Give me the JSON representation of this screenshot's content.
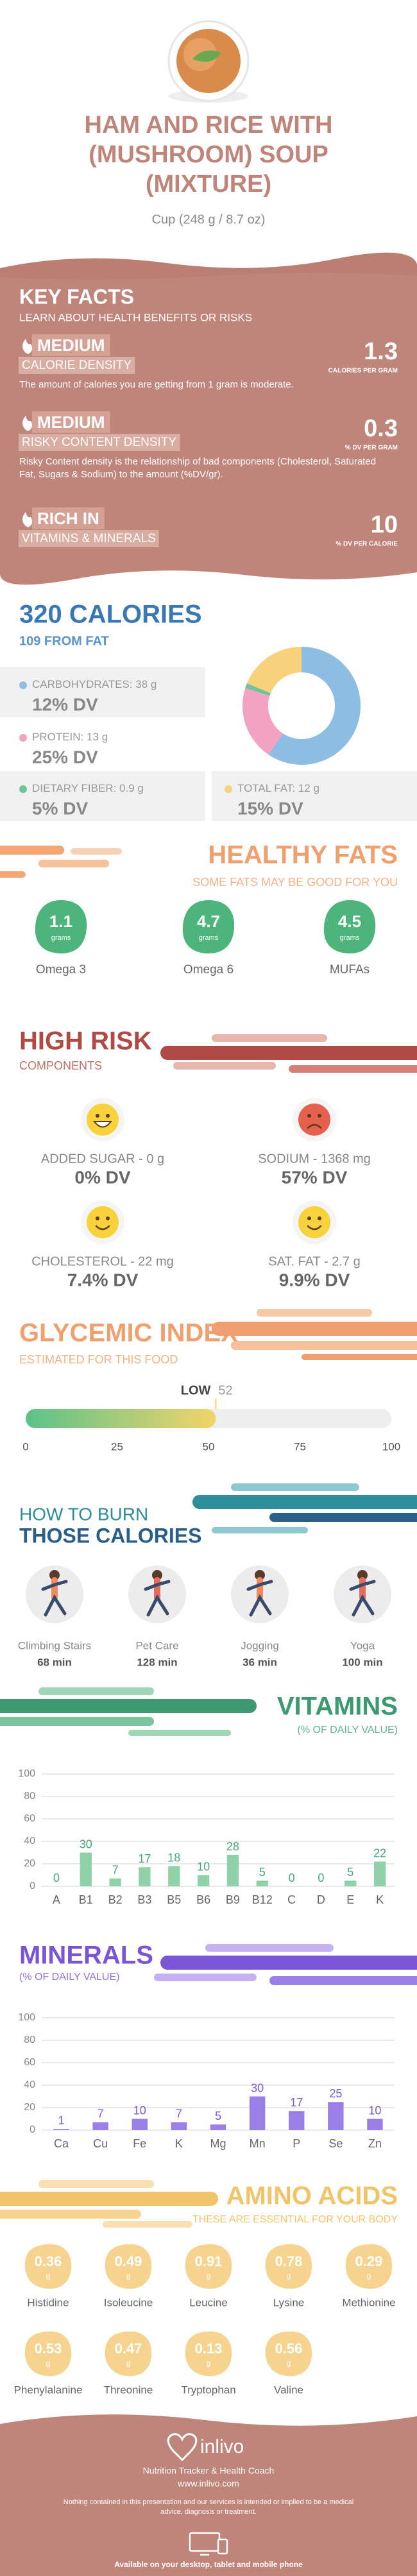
{
  "header": {
    "title": "HAM AND RICE WITH (MUSHROOM) SOUP (MIXTURE)",
    "serving": "Cup (248 g / 8.7 oz)"
  },
  "key_facts": {
    "title": "KEY FACTS",
    "subtitle": "LEARN ABOUT HEALTH BENEFITS OR RISKS",
    "items": [
      {
        "level": "MEDIUM",
        "name": "CALORIE DENSITY",
        "description": "The amount of calories you are getting from 1 gram is moderate.",
        "value": 1.3,
        "unit": "CALORIES PER GRAM"
      },
      {
        "level": "MEDIUM",
        "name": "RISKY CONTENT DENSITY",
        "description": "Risky Content density is the relationship of bad components (Cholesterol, Saturated Fat, Sugars & Sodium) to the amount (%DV/gr).",
        "value": 0.3,
        "unit": "% DV PER GRAM"
      },
      {
        "level": "RICH  IN",
        "name": "VITAMINS & MINERALS",
        "value": 10,
        "unit": "% DV PER CALORIE"
      }
    ]
  },
  "calories": {
    "title": "320 CALORIES",
    "from_fat": "109 FROM FAT",
    "nutrients": [
      {
        "label": "CARBOHYDRATES:",
        "grams": 38,
        "unit": "g",
        "dv": "12% DV",
        "color": "#8dbde3"
      },
      {
        "label": "PROTEIN:",
        "grams": 13,
        "unit": "g",
        "dv": "25% DV",
        "color": "#f3a3c2"
      },
      {
        "label": "DIETARY FIBER:",
        "grams": 0.9,
        "unit": "g",
        "dv": "5% DV",
        "color": "#6fc39b"
      },
      {
        "label": "TOTAL FAT:",
        "grams": 12,
        "unit": "g",
        "dv": "15% DV",
        "color": "#f7d27a"
      }
    ]
  },
  "healthy_fats": {
    "title": "HEALTHY FATS",
    "subtitle": "SOME FATS MAY BE GOOD FOR YOU",
    "color": "#4db57c",
    "items": [
      {
        "value": 1.1,
        "unit": "grams",
        "name": "Omega 3"
      },
      {
        "value": 4.7,
        "unit": "grams",
        "name": "Omega 6"
      },
      {
        "value": 4.5,
        "unit": "grams",
        "name": "MUFAs"
      }
    ]
  },
  "high_risk": {
    "title": "HIGH RISK",
    "subtitle": "COMPONENTS",
    "items": [
      {
        "label": "ADDED SUGAR - 0 g",
        "dv": "0% DV",
        "face": "grin"
      },
      {
        "label": "SODIUM - 1368 mg",
        "dv": "57% DV",
        "face": "sad"
      },
      {
        "label": "CHOLESTEROL - 22 mg",
        "dv": "7.4% DV",
        "face": "happy"
      },
      {
        "label": "SAT. FAT - 2.7 g",
        "dv": "9.9% DV",
        "face": "happy"
      }
    ]
  },
  "glycemic_index": {
    "title": "GLYCEMIC INDEX",
    "subtitle": "ESTIMATED FOR THIS FOOD",
    "level": "LOW",
    "value": 52,
    "xlim": [
      0,
      100
    ],
    "xticks": [
      0,
      25,
      50,
      75,
      100
    ]
  },
  "burn": {
    "title_line1": "HOW TO BURN",
    "title_line2": "THOSE CALORIES",
    "activities": [
      {
        "name": "Climbing Stairs",
        "duration": "68 min"
      },
      {
        "name": "Pet Care",
        "duration": "128 min"
      },
      {
        "name": "Jogging",
        "duration": "36 min"
      },
      {
        "name": "Yoga",
        "duration": "100 min"
      }
    ]
  },
  "vitamins": {
    "title": "VITAMINS",
    "subtitle": "(% OF DAILY VALUE)",
    "chart": {
      "type": "bar",
      "categories": [
        "A",
        "B1",
        "B2",
        "B3",
        "B5",
        "B6",
        "B9",
        "B12",
        "C",
        "D",
        "E",
        "K"
      ],
      "values": [
        0,
        30,
        7,
        17,
        18,
        10,
        28,
        5,
        0,
        0,
        5,
        22
      ],
      "ylim": [
        0,
        100
      ],
      "yticks": [
        0,
        20,
        40,
        60,
        80,
        100
      ],
      "grid": true,
      "color": "#8fd2a9",
      "label_color": "#4aa878"
    }
  },
  "minerals": {
    "title": "MINERALS",
    "subtitle": "(% OF DAILY VALUE)",
    "chart": {
      "type": "bar",
      "categories": [
        "Ca",
        "Cu",
        "Fe",
        "K",
        "Mg",
        "Mn",
        "P",
        "Se",
        "Zn"
      ],
      "values": [
        1,
        7,
        10,
        7,
        5,
        30,
        17,
        25,
        10
      ],
      "ylim": [
        0,
        100
      ],
      "yticks": [
        0,
        20,
        40,
        60,
        80,
        100
      ],
      "grid": true,
      "color": "#9a80e6",
      "label_color": "#7a5ad8"
    }
  },
  "amino_acids": {
    "title": "AMINO ACIDS",
    "subtitle": "THESE ARE ESSENTIAL FOR YOUR BODY",
    "color": "#f6d48f",
    "items": [
      {
        "name": "Histidine",
        "value": 0.36,
        "unit": "g"
      },
      {
        "name": "Isoleucine",
        "value": 0.49,
        "unit": "g"
      },
      {
        "name": "Leucine",
        "value": 0.91,
        "unit": "g"
      },
      {
        "name": "Lysine",
        "value": 0.78,
        "unit": "g"
      },
      {
        "name": "Methionine",
        "value": 0.29,
        "unit": "g"
      },
      {
        "name": "Phenylalanine",
        "value": 0.53,
        "unit": "g"
      },
      {
        "name": "Threonine",
        "value": 0.47,
        "unit": "g"
      },
      {
        "name": "Tryptophan",
        "value": 0.13,
        "unit": "g"
      },
      {
        "name": "Valine",
        "value": 0.56,
        "unit": "g"
      }
    ]
  },
  "footer": {
    "brand": "inlivo",
    "tagline": "Nutrition Tracker & Health Coach",
    "url": "www.inlivo.com",
    "disclaimer": "Nothing contained in this presentation and our services is intended or implied to be a medical advice, diagnosis or treatment.",
    "availability": "Available on your desktop, tablet and mobile phone"
  }
}
